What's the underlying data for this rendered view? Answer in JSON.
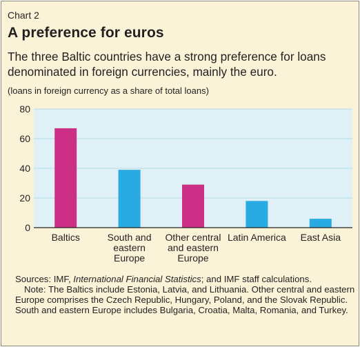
{
  "header": {
    "chart_number": "Chart 2",
    "title": "A preference for euros",
    "subtitle": "The three Baltic countries have a strong preference for loans denominated in foreign currencies, mainly the euro.",
    "unit_note": "(loans in foreign currency as a share of total loans)"
  },
  "chart_data": {
    "type": "bar",
    "categories": [
      [
        "Baltics"
      ],
      [
        "South and",
        "eastern",
        "Europe"
      ],
      [
        "Other central",
        "and eastern",
        "Europe"
      ],
      [
        "Latin America"
      ],
      [
        "East Asia"
      ]
    ],
    "values": [
      67,
      39,
      29,
      18,
      6
    ],
    "bar_colors": [
      "#cc2f86",
      "#2aaae2",
      "#cc2f86",
      "#2aaae2",
      "#2aaae2"
    ],
    "ylim": [
      0,
      80
    ],
    "yticks": [
      "0",
      "20",
      "40",
      "60",
      "80"
    ],
    "grid": true,
    "plot_background": "#dff1f6",
    "grid_color": "#b5dde9"
  },
  "footer": {
    "sources_prefix": "Sources:  IMF, ",
    "sources_italic": "International Financial Statistics",
    "sources_suffix": "; and IMF staff calculations.",
    "note": "Note: The Baltics include Estonia, Latvia, and Lithuania. Other central and eastern Europe comprises the Czech Republic, Hungary, Poland, and the Slovak Republic. South and eastern Europe includes Bulgaria, Croatia, Malta, Romania, and Turkey."
  }
}
